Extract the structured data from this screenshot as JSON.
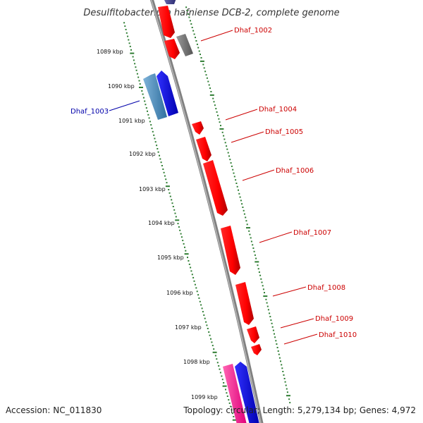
{
  "title": "Desulfitobacterium hafniense DCB-2, complete genome",
  "accession": "Accession: NC_011830",
  "summary": "Topology: circular; Length: 5,279,134 bp; Genes: 4,972",
  "colors": {
    "label_reverse": "#cc0000",
    "label_forward": "#0000aa",
    "backbone": "#888888",
    "tick": "#2e7d32"
  },
  "kbp_labels": [
    "1089 kbp",
    "1090 kbp",
    "1091 kbp",
    "1092 kbp",
    "1093 kbp",
    "1094 kbp",
    "1095 kbp",
    "1096 kbp",
    "1097 kbp",
    "1098 kbp",
    "1099 kbp"
  ],
  "gene_labels": [
    "Dhaf_1002",
    "Dhaf_1003",
    "Dhaf_1004",
    "Dhaf_1005",
    "Dhaf_1006",
    "Dhaf_1007",
    "Dhaf_1008",
    "Dhaf_1009",
    "Dhaf_1010"
  ]
}
